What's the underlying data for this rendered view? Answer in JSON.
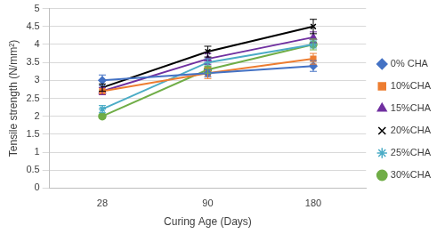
{
  "chart_data": {
    "type": "line",
    "x_label": "Curing Age (Days)",
    "y_label": "Tensile strength (N/mm²)",
    "categories": [
      "28",
      "90",
      "180"
    ],
    "ylim": [
      0,
      5
    ],
    "yticks": [
      0,
      0.5,
      1,
      1.5,
      2,
      2.5,
      3,
      3.5,
      4,
      4.5,
      5
    ],
    "grid": true,
    "legend": "right",
    "series": [
      {
        "name": "0% CHA",
        "color": "#4472c4",
        "marker": "diamond",
        "values": [
          3.0,
          3.2,
          3.4
        ],
        "errors": [
          0.15,
          0.1,
          0.15
        ]
      },
      {
        "name": "10%CHA",
        "color": "#ed7d31",
        "marker": "square",
        "values": [
          2.7,
          3.2,
          3.6
        ],
        "errors": [
          0.1,
          0.15,
          0.15
        ]
      },
      {
        "name": "15%CHA",
        "color": "#7030a0",
        "marker": "triangle",
        "values": [
          2.7,
          3.6,
          4.2
        ],
        "errors": [
          0.1,
          0.15,
          0.15
        ]
      },
      {
        "name": "20%CHA",
        "color": "#000000",
        "marker": "x",
        "values": [
          2.8,
          3.8,
          4.5
        ],
        "errors": [
          0.1,
          0.15,
          0.2
        ]
      },
      {
        "name": "25%CHA",
        "color": "#4bacc6",
        "marker": "star",
        "values": [
          2.2,
          3.5,
          4.0
        ],
        "errors": [
          0.1,
          0.1,
          0.1
        ]
      },
      {
        "name": "30%CHA",
        "color": "#70ad47",
        "marker": "circle",
        "values": [
          2.0,
          3.3,
          4.0
        ],
        "errors": [
          0.05,
          0.1,
          0.15
        ]
      }
    ]
  }
}
